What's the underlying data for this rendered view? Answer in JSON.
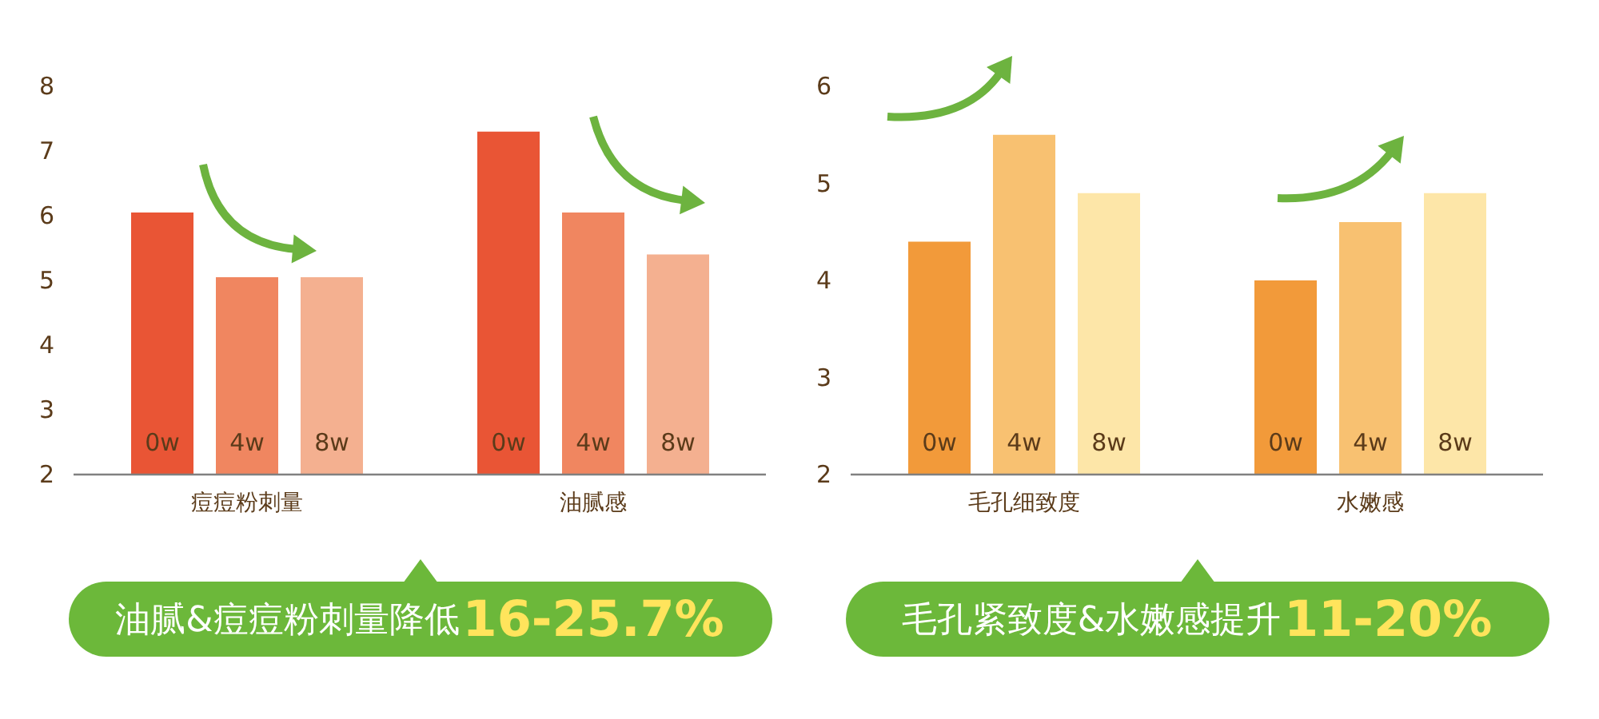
{
  "chart_data": [
    {
      "type": "bar",
      "categories": [
        "痘痘粉刺量",
        "油腻感"
      ],
      "series": [
        {
          "name": "0w",
          "color": "#e95535",
          "values": [
            6.05,
            7.3
          ]
        },
        {
          "name": "4w",
          "color": "#f08660",
          "values": [
            5.05,
            6.05
          ]
        },
        {
          "name": "8w",
          "color": "#f4b090",
          "values": [
            5.05,
            5.4
          ]
        }
      ],
      "ylim": [
        2,
        8
      ],
      "yticks": [
        2,
        3,
        4,
        5,
        6,
        7,
        8
      ],
      "annotations": [
        "油腻&痘痘粉刺量降低16-25.7%"
      ]
    },
    {
      "type": "bar",
      "categories": [
        "毛孔细致度",
        "水嫩感"
      ],
      "series": [
        {
          "name": "0w",
          "color": "#f29a3a",
          "values": [
            4.4,
            4.0
          ]
        },
        {
          "name": "4w",
          "color": "#f8c171",
          "values": [
            5.5,
            4.6
          ]
        },
        {
          "name": "8w",
          "color": "#fde6a8",
          "values": [
            4.9,
            4.9
          ]
        }
      ],
      "ylim": [
        2,
        6
      ],
      "yticks": [
        2,
        3,
        4,
        5,
        6
      ],
      "annotations": [
        "毛孔紧致度&水嫩感提升11-20%"
      ]
    }
  ]
}
